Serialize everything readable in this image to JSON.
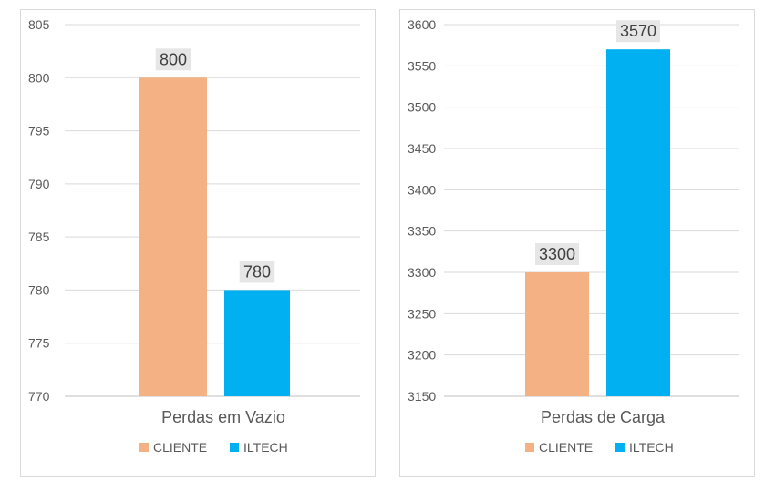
{
  "chart_data": [
    {
      "type": "bar",
      "categories": [
        "Perdas em Vazio"
      ],
      "series": [
        {
          "name": "CLIENTE",
          "values": [
            800
          ],
          "color": "#F4B183"
        },
        {
          "name": "ILTECH",
          "values": [
            780
          ],
          "color": "#00B0F0"
        }
      ],
      "ylim": [
        770,
        805
      ],
      "yticks": [
        770,
        775,
        780,
        785,
        790,
        795,
        800,
        805
      ],
      "data_labels": [
        "800",
        "780"
      ],
      "legend": "bottom",
      "grid": true
    },
    {
      "type": "bar",
      "categories": [
        "Perdas de Carga"
      ],
      "series": [
        {
          "name": "CLIENTE",
          "values": [
            3300
          ],
          "color": "#F4B183"
        },
        {
          "name": "ILTECH",
          "values": [
            3570
          ],
          "color": "#00B0F0"
        }
      ],
      "ylim": [
        3150,
        3600
      ],
      "yticks": [
        3150,
        3200,
        3250,
        3300,
        3350,
        3400,
        3450,
        3500,
        3550,
        3600
      ],
      "data_labels": [
        "3300",
        "3570"
      ],
      "legend": "bottom",
      "grid": true
    }
  ]
}
